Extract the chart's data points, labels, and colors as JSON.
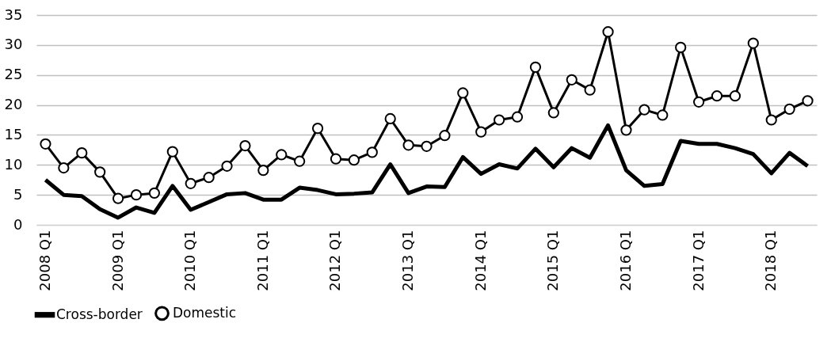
{
  "chart_data": {
    "type": "line",
    "categories": [
      "2008 Q1",
      null,
      null,
      null,
      "2009 Q1",
      null,
      null,
      null,
      "2010 Q1",
      null,
      null,
      null,
      "2011 Q1",
      null,
      null,
      null,
      "2012 Q1",
      null,
      null,
      null,
      "2013 Q1",
      null,
      null,
      null,
      "2014 Q1",
      null,
      null,
      null,
      "2015 Q1",
      null,
      null,
      null,
      "2016 Q1",
      null,
      null,
      null,
      "2017 Q1",
      null,
      null,
      null,
      "2018 Q1",
      null,
      null
    ],
    "series": [
      {
        "name": "Cross-border",
        "color": "#000000",
        "marker": "none",
        "values": [
          7.5,
          5,
          4.8,
          2.6,
          1.2,
          2.9,
          2,
          6.5,
          2.5,
          3.8,
          5.1,
          5.3,
          4.2,
          4.2,
          6.2,
          5.8,
          5.1,
          5.2,
          5.4,
          10.1,
          5.3,
          6.4,
          6.3,
          11.3,
          8.5,
          10.1,
          9.4,
          12.7,
          9.6,
          12.8,
          11.2,
          16.6,
          9.1,
          6.5,
          6.8,
          14,
          13.5,
          13.5,
          12.8,
          11.8,
          8.6,
          12,
          9.8
        ]
      },
      {
        "name": "Domestic",
        "color": "#000000",
        "marker": "circle",
        "values": [
          13.5,
          9.5,
          12,
          8.8,
          4.4,
          5,
          5.3,
          12.2,
          6.9,
          7.9,
          9.8,
          13.2,
          9.1,
          11.7,
          10.6,
          16.1,
          11,
          10.8,
          12.1,
          17.7,
          13.3,
          13.1,
          14.9,
          22,
          15.5,
          17.5,
          18,
          26.3,
          18.7,
          24.2,
          22.5,
          32.2,
          15.8,
          19.2,
          18.3,
          29.6,
          20.5,
          21.5,
          21.5,
          30.3,
          17.5,
          19.3,
          20.7
        ]
      }
    ],
    "ylim": [
      0,
      35
    ],
    "yticks": [
      0,
      5,
      10,
      15,
      20,
      25,
      30,
      35
    ],
    "grid": "y",
    "legend": "bottom"
  }
}
